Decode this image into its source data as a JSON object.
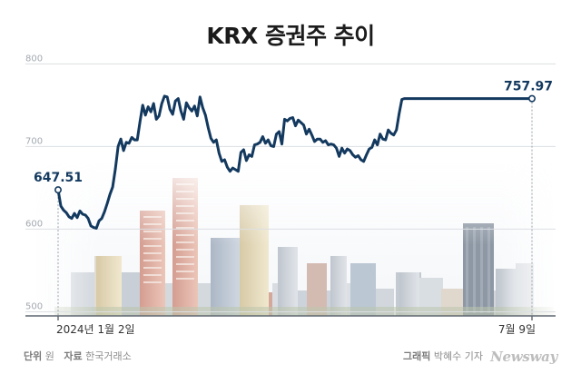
{
  "chart_data": {
    "type": "line",
    "title": "KRX 증권주 추이",
    "xlabel": "",
    "ylabel": "",
    "ylim": [
      495,
      807
    ],
    "yticks": [
      "800",
      "700",
      "600",
      "500"
    ],
    "x_start_label": "2024년 1월 2일",
    "x_end_label": "7월 9일",
    "start_value": 647.51,
    "end_value": 757.97,
    "start_label": "647.51",
    "end_label": "757.97",
    "line_color": "#13395f",
    "grid": true,
    "x": [
      0,
      3,
      6,
      9,
      12,
      15,
      18,
      21,
      24,
      27,
      30,
      33,
      36,
      39,
      42,
      45,
      48,
      51,
      54,
      57,
      60,
      63,
      66,
      69,
      72,
      75,
      78,
      81,
      84,
      87,
      90,
      93,
      96,
      99,
      102,
      105,
      108,
      111,
      114,
      117,
      120,
      123,
      126,
      129,
      132,
      135,
      138,
      141,
      144,
      147,
      150,
      153,
      156,
      159,
      162,
      165,
      168,
      171,
      174,
      177,
      180,
      183,
      186,
      189,
      192,
      195,
      198,
      201,
      204,
      207,
      210,
      213,
      216,
      219,
      222,
      225,
      228,
      231,
      234,
      237,
      240,
      243,
      246,
      249,
      252,
      255,
      258,
      261,
      264,
      267,
      270,
      273,
      276,
      279,
      282,
      285,
      288,
      291,
      294,
      297,
      300,
      303,
      306,
      309,
      312,
      315,
      318,
      321,
      324,
      327,
      330,
      333,
      336,
      339,
      342,
      345,
      348,
      351,
      354,
      357,
      360,
      363,
      366,
      369,
      372,
      375,
      378,
      381,
      384,
      387,
      390,
      393,
      396,
      399,
      402,
      405,
      408,
      411,
      414,
      417,
      420,
      423,
      426,
      429,
      432,
      435,
      438,
      441,
      444,
      447,
      450,
      453,
      456,
      459,
      462,
      465,
      468,
      471,
      474,
      477,
      480,
      483,
      486,
      489,
      492,
      495,
      498,
      501,
      504,
      507,
      510,
      513,
      516,
      519,
      521
    ],
    "values": [
      647.51,
      628,
      623,
      620,
      615,
      613,
      619,
      614,
      622,
      618,
      617,
      613,
      604,
      602,
      601,
      610,
      613,
      621,
      631,
      642,
      651,
      673,
      700,
      709,
      695,
      705,
      704,
      711,
      708,
      708,
      730,
      750,
      738,
      748,
      742,
      752,
      733,
      737,
      752,
      761,
      760,
      745,
      739,
      755,
      758,
      743,
      733,
      753,
      747,
      743,
      749,
      737,
      760,
      747,
      738,
      723,
      710,
      705,
      708,
      692,
      682,
      684,
      675,
      670,
      674,
      672,
      670,
      693,
      696,
      683,
      690,
      688,
      702,
      703,
      705,
      712,
      704,
      708,
      701,
      700,
      715,
      718,
      703,
      733,
      731,
      734,
      735,
      725,
      732,
      729,
      726,
      715,
      721,
      714,
      706,
      709,
      709,
      705,
      707,
      702,
      703,
      702,
      698,
      688,
      698,
      692,
      697,
      695,
      690,
      687,
      689,
      684,
      682,
      690,
      697,
      699,
      708,
      702,
      715,
      709,
      708,
      720,
      716,
      714,
      720,
      740,
      757,
      758,
      757.97,
      757.97,
      757.97,
      757.97,
      757.97,
      757.97,
      757.97,
      757.97,
      757.97,
      757.97,
      757.97,
      757.97,
      757.97,
      757.97,
      757.97,
      757.97,
      757.97,
      757.97,
      757.97,
      757.97,
      757.97,
      757.97,
      757.97,
      757.97,
      757.97,
      757.97,
      757.97,
      757.97,
      757.97,
      757.97,
      757.97,
      757.97,
      757.97,
      757.97,
      757.97,
      757.97,
      757.97,
      757.97,
      757.97,
      757.97,
      757.97,
      757.97,
      757.97,
      757.97,
      757.97,
      757.97,
      757.97
    ]
  },
  "footer": {
    "unit_label": "단위",
    "unit_value": "원",
    "source_label": "자료",
    "source_value": "한국거래소",
    "credit_label": "그래픽",
    "credit_value": "박혜수 기자",
    "brand": "Newsway"
  }
}
